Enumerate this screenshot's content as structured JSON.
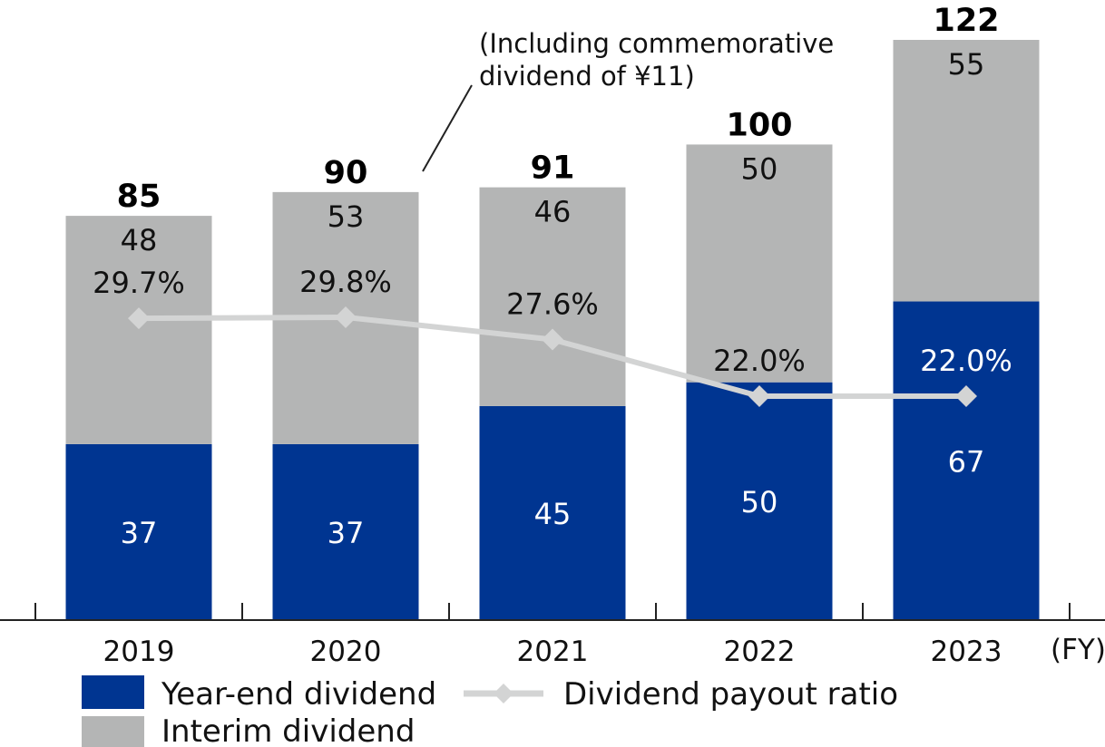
{
  "chart_data": {
    "type": "bar",
    "stacked": true,
    "categories": [
      "2019",
      "2020",
      "2021",
      "2022",
      "2023"
    ],
    "x_unit_label": "(FY)",
    "series": [
      {
        "name": "Year-end dividend",
        "values": [
          37,
          37,
          45,
          50,
          67
        ],
        "color": "#003591"
      },
      {
        "name": "Interim dividend",
        "values": [
          48,
          53,
          46,
          50,
          55
        ],
        "color": "#b4b5b5"
      }
    ],
    "totals": [
      85,
      90,
      91,
      100,
      122
    ],
    "total_labels": [
      "85",
      "90",
      "91",
      "100",
      "122"
    ],
    "line_series": {
      "name": "Dividend payout ratio",
      "values": [
        29.7,
        29.8,
        27.6,
        22.0,
        22.0
      ],
      "labels": [
        "29.7%",
        "29.8%",
        "27.6%",
        "22.0%",
        "22.0%"
      ],
      "color": "#d3d4d4"
    },
    "annotation": {
      "lines": [
        "(Including commemorative",
        "dividend of ¥11)"
      ]
    },
    "ylim": [
      0,
      122
    ],
    "grid": false,
    "legend": {
      "placement": "bottom",
      "items": [
        "Year-end dividend",
        "Dividend payout ratio",
        "Interim dividend"
      ]
    }
  }
}
